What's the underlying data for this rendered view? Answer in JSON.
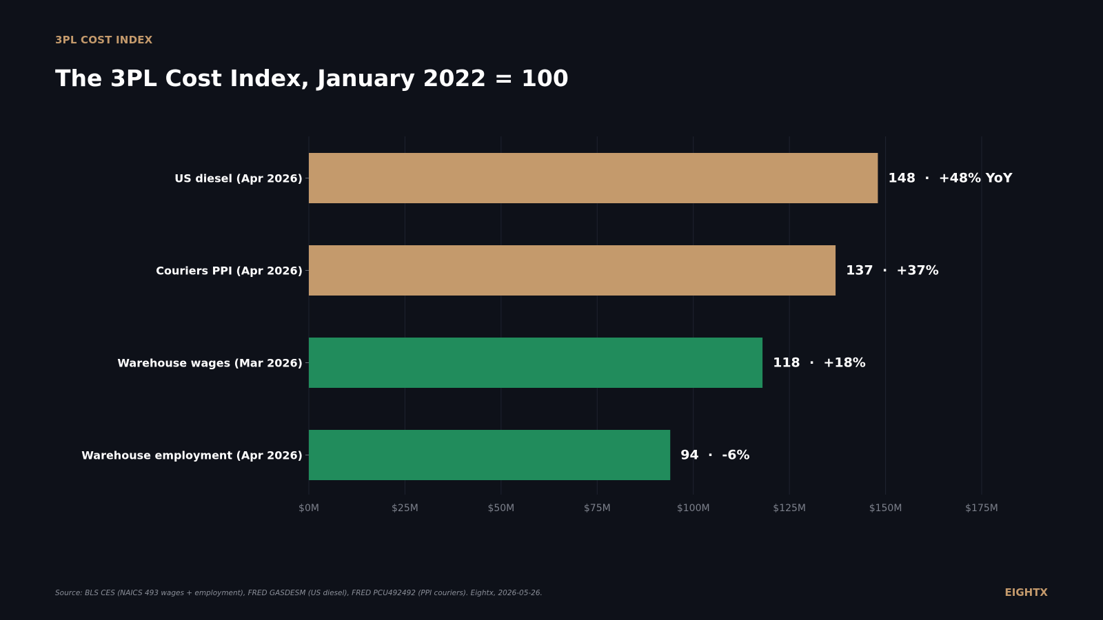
{
  "header": {
    "eyebrow": "3PL COST INDEX",
    "title": "The 3PL Cost Index, January 2022 = 100"
  },
  "footer": {
    "source": "Source: BLS CES (NAICS 493 wages + employment), FRED GASDESM (US diesel), FRED PCU492492 (PPI couriers). Eightx, 2026-05-26.",
    "brand": "EIGHTX"
  },
  "chart_data": {
    "type": "bar",
    "orientation": "horizontal",
    "title": "The 3PL Cost Index, January 2022 = 100",
    "categories": [
      "US diesel (Apr 2026)",
      "Couriers PPI (Apr 2026)",
      "Warehouse wages (Mar 2026)",
      "Warehouse employment (Apr 2026)"
    ],
    "values": [
      148,
      137,
      118,
      94
    ],
    "data_labels": [
      "148  ·  +48% YoY",
      "137  ·  +37%",
      "118  ·  +18%",
      "94  ·  -6%"
    ],
    "bar_colors": [
      "#c49a6c",
      "#c49a6c",
      "#218c5c",
      "#218c5c"
    ],
    "x_ticks": [
      0,
      25,
      50,
      75,
      100,
      125,
      150,
      175
    ],
    "x_tick_labels": [
      "$0M",
      "$25M",
      "$50M",
      "$75M",
      "$100M",
      "$125M",
      "$150M",
      "$175M"
    ],
    "xlim": [
      0,
      175
    ],
    "xlabel": "",
    "ylabel": "",
    "grid": true
  }
}
